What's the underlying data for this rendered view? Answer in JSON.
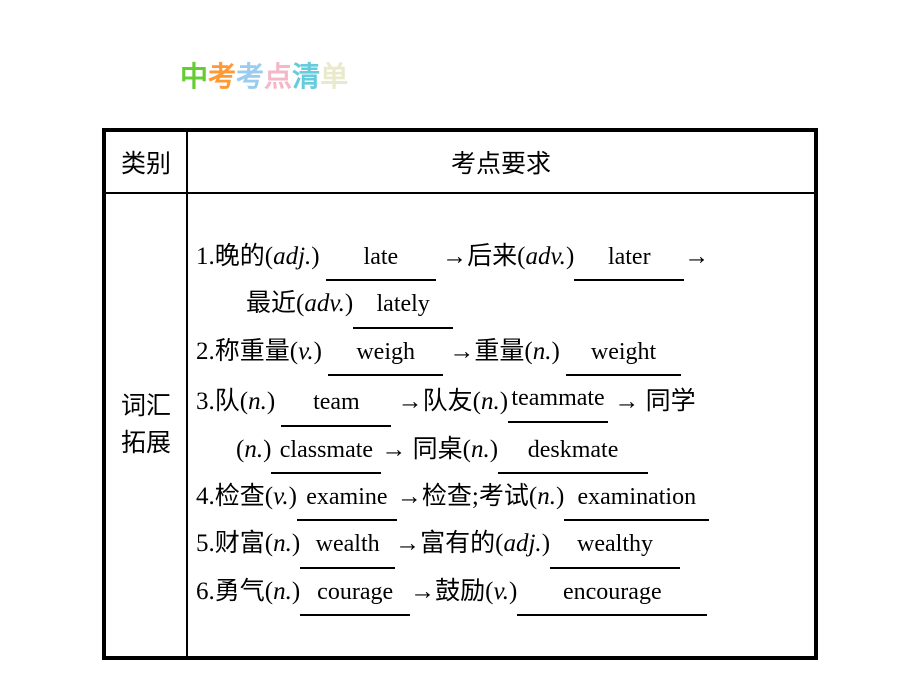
{
  "title": {
    "chars": [
      {
        "t": "中",
        "c": "#66cc33"
      },
      {
        "t": "考",
        "c": "#ff9933"
      },
      {
        "t": "考",
        "c": "#99ccee"
      },
      {
        "t": "点",
        "c": "#f5b6c8"
      },
      {
        "t": "清",
        "c": "#66ccdd"
      },
      {
        "t": "单",
        "c": "#e9e9cc"
      }
    ]
  },
  "headers": {
    "left": "类别",
    "right": "考点要求"
  },
  "side_label": "词汇\n拓展",
  "rows": {
    "r1a": {
      "n": "1.",
      "l1": "晚的(",
      "p1": "adj.",
      "a1": "late",
      "a1w": 110,
      "l2": " →后来(",
      "p2": "adv.",
      "a2": "later",
      "a2w": 110,
      "tail": "→"
    },
    "r1b": {
      "l1": "最近(",
      "p1": "adv.",
      "a1": "lately",
      "a1w": 100
    },
    "r2": {
      "n": "2.",
      "l1": "称重量(",
      "p1": "v.",
      "a1": "weigh",
      "a1w": 115,
      "l2": " →重量(",
      "p2": "n.",
      "a2": "weight",
      "a2w": 115
    },
    "r3a": {
      "n": "3.",
      "l1": "队(",
      "p1": "n.",
      "a1": "team",
      "a1w": 110,
      "l2": " →队友(",
      "p2": "n.",
      "a2": "teammate",
      "a2w": 100,
      "tail": " → 同学"
    },
    "r3b": {
      "l1": "(",
      "p1": "n.",
      "a1": "classmate",
      "a1w": 110,
      "l2": "→ 同桌(",
      "p2": "n.",
      "a2": "deskmate",
      "a2w": 150
    },
    "r4": {
      "n": "4.",
      "l1": "检查(",
      "p1": "v.",
      "a1": "examine",
      "a1w": 100,
      "l2": "→检查;考试(",
      "p2": "n.",
      "a2": "examination",
      "a2w": 145
    },
    "r5": {
      "n": "5.",
      "l1": "财富(",
      "p1": "n.",
      "a1": "wealth",
      "a1w": 95,
      "l2": "→富有的(",
      "p2": "adj.",
      "a2": "wealthy",
      "a2w": 130
    },
    "r6": {
      "n": "6.",
      "l1": "勇气(",
      "p1": "n.",
      "a1": "courage",
      "a1w": 110,
      "l2": "→鼓励(",
      "p2": "v.",
      "a2": "encourage",
      "a2w": 190
    }
  }
}
